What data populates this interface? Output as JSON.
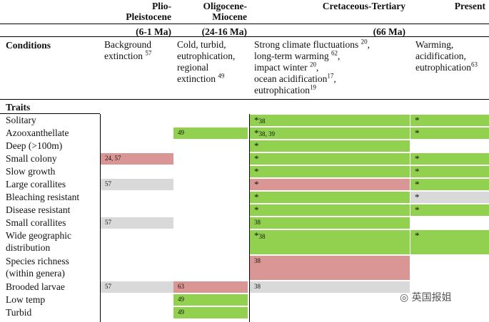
{
  "columns": [
    {
      "id": "plio",
      "title": "Plio-\nPleistocene",
      "period": "(6-1 Ma)"
    },
    {
      "id": "oligo",
      "title": "Oligocene-\nMiocene",
      "period": "(24-16 Ma)"
    },
    {
      "id": "kt",
      "title": "Cretaceous-Tertiary",
      "period": "(66 Ma)"
    },
    {
      "id": "present",
      "title": "Present",
      "period": ""
    }
  ],
  "conditions": {
    "label": "Conditions",
    "plio": [
      {
        "t": "Background"
      },
      {
        "t": "extinction ",
        "sup": "57"
      }
    ],
    "oligo": [
      {
        "t": "Cold, turbid,"
      },
      {
        "t": "eutrophication,"
      },
      {
        "t": "regional"
      },
      {
        "t": "extinction ",
        "sup": "49"
      }
    ],
    "kt": [
      {
        "t": "Strong climate fluctuations ",
        "sup": "20"
      },
      {
        "t": ",",
        "tail": true
      },
      {
        "t": "long-term warming ",
        "sup": "62"
      },
      {
        "t": ",",
        "tail": true
      },
      {
        "t": "impact winter ",
        "sup": "20"
      },
      {
        "t": ",",
        "tail": true
      },
      {
        "t": "ocean acidification",
        "sup": "17"
      },
      {
        "t": ",",
        "tail": true
      },
      {
        "t": "eutrophication",
        "sup": "19"
      }
    ],
    "present": [
      {
        "t": "Warming,"
      },
      {
        "t": "acidification,"
      },
      {
        "t": "eutrophication",
        "sup": "63"
      }
    ]
  },
  "traits_label": "Traits",
  "traits": [
    {
      "name": "Solitary",
      "kt": {
        "c": "green",
        "t": "*",
        "sup": "38"
      },
      "present": {
        "c": "green",
        "t": "*"
      }
    },
    {
      "name": "Azooxanthellate",
      "oligo": {
        "c": "green",
        "t": "49"
      },
      "kt": {
        "c": "green",
        "t": "*",
        "sup": "38, 39"
      },
      "present": {
        "c": "green",
        "t": "*"
      }
    },
    {
      "name": "Deep (>100m)",
      "kt": {
        "c": "green",
        "t": "*"
      }
    },
    {
      "name": "Small colony",
      "plio": {
        "c": "red",
        "t": "24, 57"
      },
      "kt": {
        "c": "green",
        "t": "*"
      },
      "present": {
        "c": "green",
        "t": "*"
      }
    },
    {
      "name": "Slow growth",
      "kt": {
        "c": "green",
        "t": "*"
      },
      "present": {
        "c": "green",
        "t": "*"
      }
    },
    {
      "name": "Large corallites",
      "plio": {
        "c": "grey",
        "t": "57"
      },
      "kt": {
        "c": "red",
        "t": "*"
      },
      "present": {
        "c": "green",
        "t": "*"
      }
    },
    {
      "name": "Bleaching resistant",
      "kt": {
        "c": "green",
        "t": "*"
      },
      "present": {
        "c": "grey",
        "t": "*"
      }
    },
    {
      "name": "Disease resistant",
      "kt": {
        "c": "green",
        "t": "*"
      },
      "present": {
        "c": "green",
        "t": "*"
      }
    },
    {
      "name": "Small corallites",
      "plio": {
        "c": "grey",
        "t": "57"
      },
      "kt": {
        "c": "green",
        "t": "38"
      }
    },
    {
      "name": "Wide geographic\ndistribution",
      "kt": {
        "c": "green",
        "t": "*",
        "sup": "38"
      },
      "present": {
        "c": "green",
        "t": "*"
      }
    },
    {
      "name": "Species richness\n(within genera)",
      "kt": {
        "c": "red",
        "t": "38"
      }
    },
    {
      "name": "Brooded larvae",
      "plio": {
        "c": "grey",
        "t": "57"
      },
      "oligo": {
        "c": "red",
        "t": "63"
      },
      "kt": {
        "c": "grey",
        "t": "38"
      }
    },
    {
      "name": "Low temp",
      "oligo": {
        "c": "green",
        "t": "49"
      }
    },
    {
      "name": "Turbid",
      "oligo": {
        "c": "green",
        "t": "49"
      }
    }
  ],
  "watermark": "英国报姐"
}
